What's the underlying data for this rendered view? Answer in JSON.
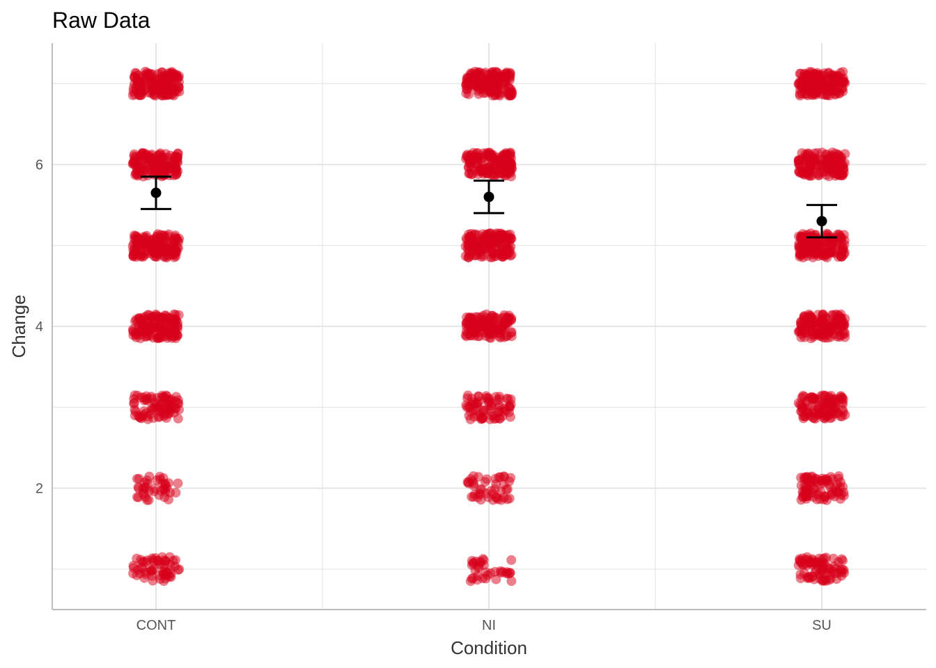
{
  "chart_data": {
    "type": "scatter",
    "title": "Raw Data",
    "xlabel": "Condition",
    "ylabel": "Change",
    "categories": [
      "CONT",
      "NI",
      "SU"
    ],
    "y_ticks": [
      2,
      4,
      6
    ],
    "ylim": [
      0.5,
      7.5
    ],
    "grid": true,
    "legend": "none",
    "jitter_levels": [
      1,
      2,
      3,
      4,
      5,
      6,
      7
    ],
    "raw_point_counts": {
      "CONT": [
        60,
        40,
        80,
        130,
        140,
        140,
        150
      ],
      "NI": [
        35,
        45,
        70,
        130,
        140,
        140,
        150
      ],
      "SU": [
        80,
        80,
        100,
        130,
        140,
        140,
        150
      ]
    },
    "summary": [
      {
        "condition": "CONT",
        "mean": 5.65,
        "lower": 5.45,
        "upper": 5.85
      },
      {
        "condition": "NI",
        "mean": 5.6,
        "lower": 5.4,
        "upper": 5.8
      },
      {
        "condition": "SU",
        "mean": 5.3,
        "lower": 5.1,
        "upper": 5.5
      }
    ],
    "colors": {
      "points": "#d7001a",
      "summary": "#000000",
      "grid": "#e5e5e5",
      "axis": "#bdbdbd"
    }
  }
}
